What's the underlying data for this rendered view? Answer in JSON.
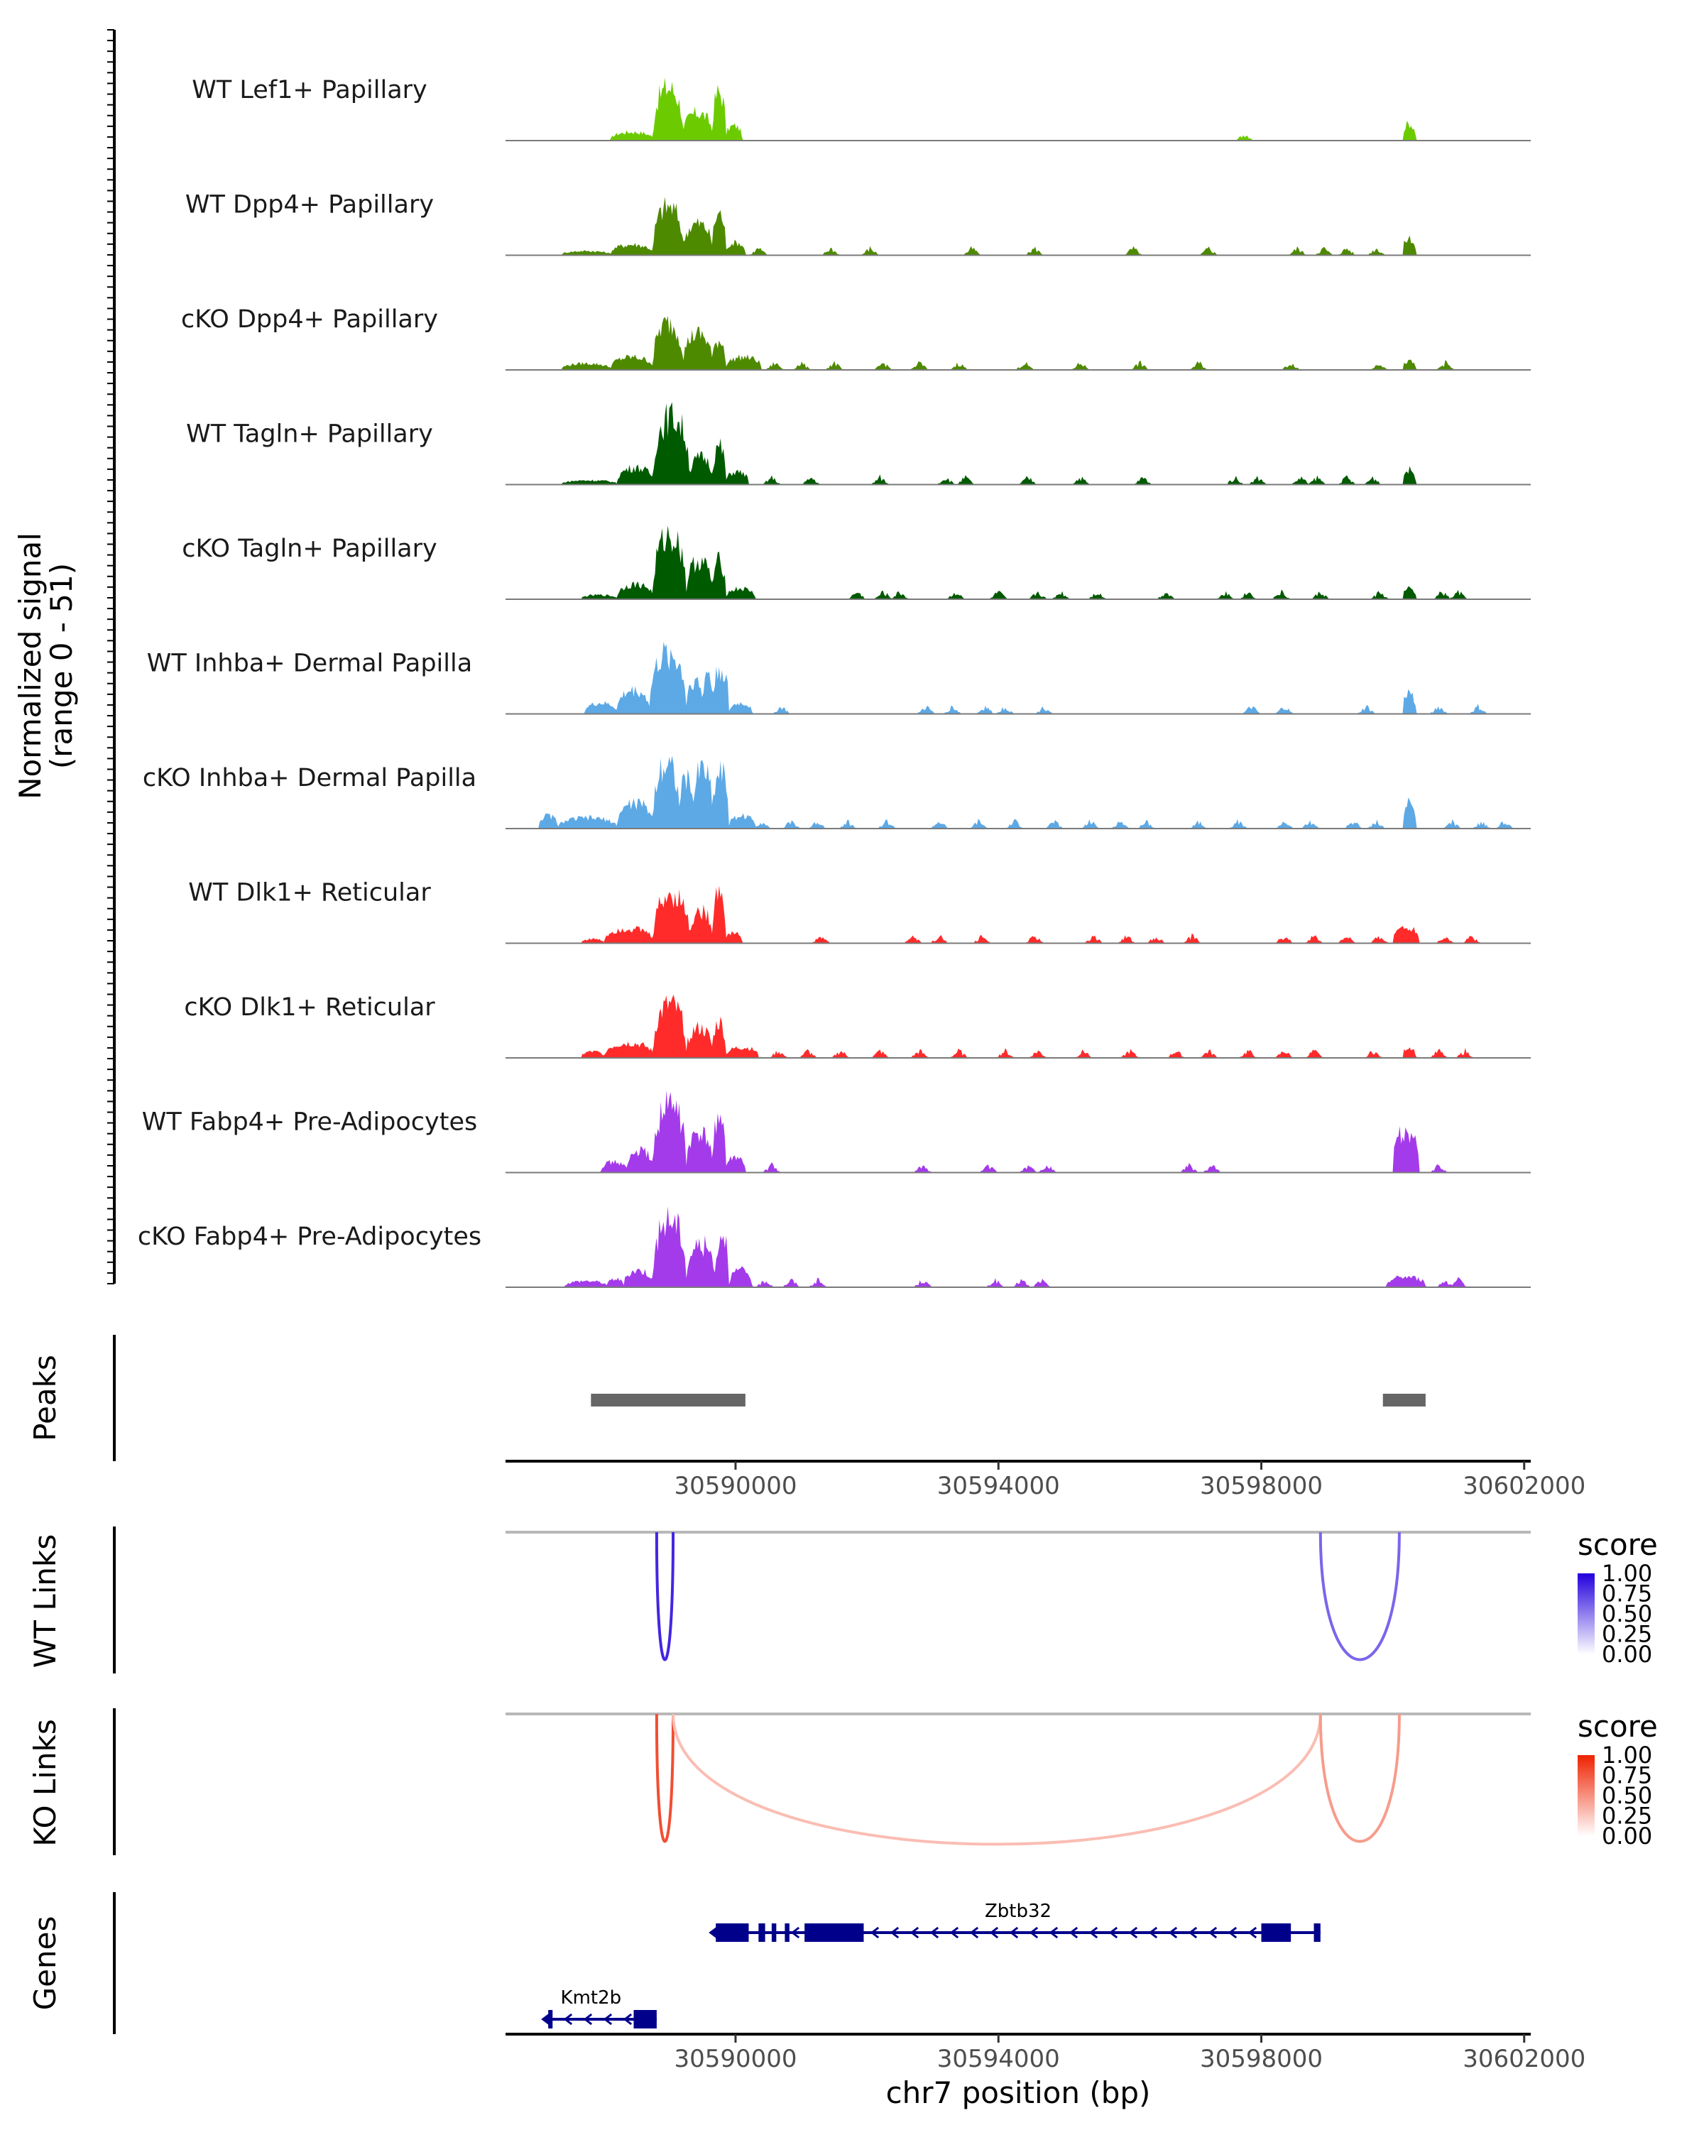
{
  "chart_data": {
    "type": "genome-coverage",
    "region": {
      "chrom": "chr7",
      "start": 30586500,
      "end": 30602100
    },
    "coverage": {
      "ylabel_line1": "Normalized signal",
      "ylabel_line2": "(range 0 - 51)",
      "yrange": [
        0,
        51
      ],
      "tracks": [
        {
          "label": "WT Lef1+ Papillary",
          "color": "#6CCB00",
          "shape": "lef1"
        },
        {
          "label": "WT Dpp4+ Papillary",
          "color": "#4E8A00",
          "shape": "dpp4wt"
        },
        {
          "label": "cKO Dpp4+ Papillary",
          "color": "#4E8A00",
          "shape": "dpp4ko"
        },
        {
          "label": "WT Tagln+ Papillary",
          "color": "#005A00",
          "shape": "taglnwt"
        },
        {
          "label": "cKO Tagln+ Papillary",
          "color": "#005A00",
          "shape": "taglnko"
        },
        {
          "label": "WT Inhba+ Dermal Papilla",
          "color": "#5DA9E6",
          "shape": "inhbawt"
        },
        {
          "label": "cKO Inhba+ Dermal Papilla",
          "color": "#5DA9E6",
          "shape": "inhbako"
        },
        {
          "label": "WT Dlk1+ Reticular",
          "color": "#FF2B2B",
          "shape": "dlk1wt"
        },
        {
          "label": "cKO Dlk1+ Reticular",
          "color": "#FF2B2B",
          "shape": "dlk1ko"
        },
        {
          "label": "WT Fabp4+ Pre-Adipocytes",
          "color": "#A43BEA",
          "shape": "fabp4wt"
        },
        {
          "label": "cKO Fabp4+ Pre-Adipocytes",
          "color": "#A43BEA",
          "shape": "fabp4ko"
        }
      ]
    },
    "peaks": {
      "label": "Peaks",
      "color": "#666666",
      "intervals": [
        [
          30587800,
          30590150
        ],
        [
          30599850,
          30600500
        ]
      ]
    },
    "axis_ticks": [
      30590000,
      30594000,
      30598000,
      30602000
    ],
    "axis_tick_labels": [
      "30590000",
      "30594000",
      "30598000",
      "30602000"
    ],
    "wt_links": {
      "label": "WT Links",
      "legend_title": "score",
      "legend_ticks": [
        "1.00",
        "0.75",
        "0.50",
        "0.25",
        "0.00"
      ],
      "color_high": "#2200DD",
      "arcs": [
        {
          "start": 30588800,
          "end": 30589050,
          "score": 0.85
        },
        {
          "start": 30598900,
          "end": 30600100,
          "score": 0.6
        }
      ]
    },
    "ko_links": {
      "label": "KO Links",
      "legend_title": "score",
      "legend_ticks": [
        "1.00",
        "0.75",
        "0.50",
        "0.25",
        "0.00"
      ],
      "color_high": "#EE2200",
      "arcs": [
        {
          "start": 30588800,
          "end": 30589050,
          "score": 0.8
        },
        {
          "start": 30589050,
          "end": 30598900,
          "score": 0.3
        },
        {
          "start": 30598900,
          "end": 30600100,
          "score": 0.45
        }
      ]
    },
    "genes": {
      "label": "Genes",
      "color": "#00008B",
      "items": [
        {
          "name": "Zbtb32",
          "start": 30589700,
          "end": 30598900,
          "strand": "-",
          "row": 0,
          "exons": [
            [
              30589700,
              30590200
            ],
            [
              30590350,
              30590450
            ],
            [
              30590550,
              30590620
            ],
            [
              30590750,
              30590820
            ],
            [
              30591050,
              30591950
            ],
            [
              30598000,
              30598450
            ],
            [
              30598800,
              30598900
            ]
          ]
        },
        {
          "name": "Kmt2b",
          "start": 30587150,
          "end": 30588800,
          "strand": "-",
          "row": 1,
          "exons": [
            [
              30587150,
              30587200
            ],
            [
              30588450,
              30588800
            ]
          ]
        }
      ]
    },
    "xlabel": "chr7 position (bp)"
  }
}
